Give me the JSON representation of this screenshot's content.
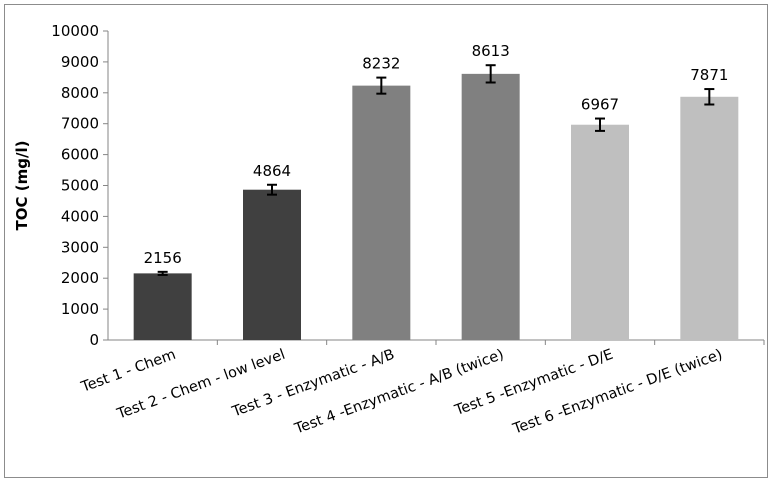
{
  "chart_data": {
    "type": "bar",
    "title": "",
    "xlabel": "",
    "ylabel": "TOC (mg/l)",
    "ylim": [
      0,
      10000
    ],
    "ytick_step": 1000,
    "yticks": [
      "0",
      "1000",
      "2000",
      "3000",
      "4000",
      "5000",
      "6000",
      "7000",
      "8000",
      "9000",
      "10000"
    ],
    "grid": false,
    "legend": "none",
    "categories": [
      "Test 1 - Chem",
      "Test 2 - Chem - low level",
      "Test 3 - Enzymatic - A/B",
      "Test 4 -Enzymatic - A/B (twice)",
      "Test 5 -Enzymatic - D/E",
      "Test 6 -Enzymatic - D/E (twice)"
    ],
    "values": [
      2156,
      4864,
      8232,
      8613,
      6967,
      7871
    ],
    "data_labels": [
      "2156",
      "4864",
      "8232",
      "8613",
      "6967",
      "7871"
    ],
    "errors": [
      50,
      160,
      260,
      280,
      200,
      250
    ],
    "colors": [
      "#404040",
      "#404040",
      "#808080",
      "#808080",
      "#bfbfbf",
      "#bfbfbf"
    ]
  }
}
